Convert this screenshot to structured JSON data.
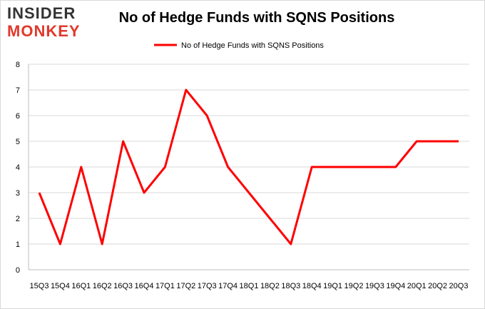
{
  "logo": {
    "line1": "INSIDER",
    "line2": "MONKEY"
  },
  "chart_data": {
    "type": "line",
    "title": "No of Hedge Funds with SQNS Positions",
    "xlabel": "",
    "ylabel": "",
    "categories": [
      "15Q3",
      "15Q4",
      "16Q1",
      "16Q2",
      "16Q3",
      "16Q4",
      "17Q1",
      "17Q2",
      "17Q3",
      "17Q4",
      "18Q1",
      "18Q2",
      "18Q3",
      "18Q4",
      "19Q1",
      "19Q2",
      "19Q3",
      "19Q4",
      "20Q1",
      "20Q2",
      "20Q3"
    ],
    "series": [
      {
        "name": "No of Hedge Funds with SQNS Positions",
        "values": [
          3,
          1,
          4,
          1,
          5,
          3,
          4,
          7,
          6,
          4,
          3,
          2,
          1,
          4,
          4,
          4,
          4,
          4,
          5,
          5,
          5
        ],
        "color": "#ff0000"
      }
    ],
    "ylim": [
      0,
      8
    ],
    "yticks": [
      "0",
      "1",
      "2",
      "3",
      "4",
      "5",
      "6",
      "7",
      "8"
    ],
    "grid": true,
    "legend_position": "top-center"
  }
}
